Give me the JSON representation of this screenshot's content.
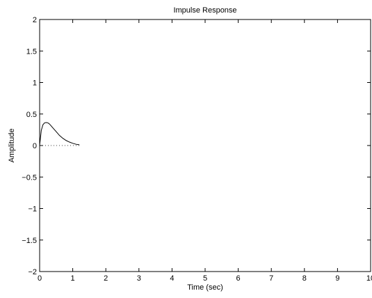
{
  "chart_data": {
    "type": "line",
    "title": "Impulse Response",
    "xlabel": "Time (sec)",
    "ylabel": "Amplitude",
    "xlim": [
      0,
      10
    ],
    "ylim": [
      -2,
      2
    ],
    "grid": false,
    "x_ticks": [
      0,
      1,
      2,
      3,
      4,
      5,
      6,
      7,
      8,
      9,
      10
    ],
    "x_tick_labels": [
      "0",
      "1",
      "2",
      "3",
      "4",
      "5",
      "6",
      "7",
      "8",
      "9",
      "10"
    ],
    "y_ticks": [
      -2,
      -1.5,
      -1,
      -0.5,
      0,
      0.5,
      1,
      1.5,
      2
    ],
    "y_tick_labels": [
      "−2",
      "−1.5",
      "−1",
      "−0.5",
      "0",
      "0.5",
      "1",
      "1.5",
      "2"
    ],
    "series": [
      {
        "x": [
          0,
          0.05,
          0.1,
          0.15,
          0.2,
          0.25,
          0.3,
          0.35,
          0.4,
          0.5,
          0.6,
          0.7,
          0.8,
          0.9,
          1.0,
          1.1,
          1.2
        ],
        "y": [
          0,
          0.24,
          0.33,
          0.36,
          0.365,
          0.36,
          0.34,
          0.31,
          0.28,
          0.22,
          0.16,
          0.115,
          0.08,
          0.055,
          0.035,
          0.02,
          0.012
        ]
      },
      {
        "x": [
          0,
          1.2
        ],
        "y": [
          0,
          0
        ],
        "style": "dotted"
      }
    ]
  }
}
